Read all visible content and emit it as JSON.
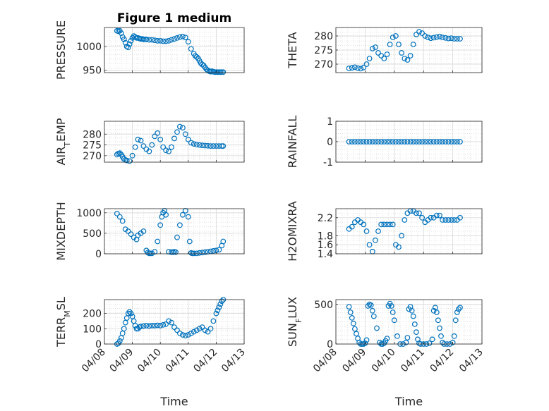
{
  "chart_data": [
    {
      "type": "scatter",
      "title": "Figure 1 medium",
      "ylabel": "PRESSURE",
      "xlabel": "",
      "xlim": [
        0,
        5
      ],
      "ylim": [
        945,
        1040
      ],
      "yticks": [
        950,
        1000
      ],
      "ytick_labels": [
        "950",
        "1000"
      ],
      "xtick_labels": [],
      "series": [
        {
          "name": "PRESSURE",
          "x": [
            0.45,
            0.5,
            0.55,
            0.6,
            0.65,
            0.7,
            0.75,
            0.8,
            0.85,
            0.9,
            0.95,
            1.0,
            1.05,
            1.1,
            1.15,
            1.2,
            1.25,
            1.3,
            1.35,
            1.4,
            1.45,
            1.5,
            1.6,
            1.7,
            1.8,
            1.9,
            2.0,
            2.1,
            2.2,
            2.3,
            2.4,
            2.5,
            2.6,
            2.7,
            2.8,
            2.9,
            3.0,
            3.1,
            3.2,
            3.25,
            3.3,
            3.35,
            3.4,
            3.45,
            3.5,
            3.55,
            3.6,
            3.65,
            3.7,
            3.75,
            3.8,
            3.85,
            3.9,
            3.95,
            4.0,
            4.05,
            4.1,
            4.15,
            4.2,
            4.25
          ],
          "y": [
            1033,
            1032,
            1033,
            1028,
            1020,
            1015,
            1008,
            1000,
            998,
            1005,
            1012,
            1018,
            1022,
            1020,
            1018,
            1018,
            1017,
            1016,
            1016,
            1015,
            1015,
            1015,
            1014,
            1014,
            1013,
            1012,
            1012,
            1011,
            1011,
            1012,
            1014,
            1016,
            1018,
            1020,
            1021,
            1019,
            1010,
            995,
            985,
            980,
            978,
            975,
            970,
            965,
            962,
            960,
            956,
            952,
            950,
            948,
            947,
            948,
            947,
            946,
            946,
            946,
            946,
            946,
            946,
            946
          ]
        }
      ]
    },
    {
      "type": "scatter",
      "title": "",
      "ylabel": "THETA",
      "xlabel": "",
      "xlim": [
        0,
        5
      ],
      "ylim": [
        267,
        283
      ],
      "yticks": [
        270,
        275,
        280
      ],
      "ytick_labels": [
        "270",
        "275",
        "280"
      ],
      "xtick_labels": [],
      "series": [
        {
          "name": "THETA",
          "x": [
            0.45,
            0.55,
            0.65,
            0.75,
            0.85,
            0.95,
            1.05,
            1.15,
            1.25,
            1.35,
            1.45,
            1.55,
            1.65,
            1.75,
            1.85,
            1.95,
            2.05,
            2.15,
            2.25,
            2.35,
            2.45,
            2.55,
            2.65,
            2.75,
            2.85,
            2.95,
            3.05,
            3.15,
            3.25,
            3.35,
            3.45,
            3.55,
            3.65,
            3.75,
            3.85,
            3.95,
            4.05,
            4.15,
            4.25
          ],
          "y": [
            268.5,
            268.7,
            268.9,
            268.6,
            268.4,
            268.8,
            270,
            272,
            275.5,
            276,
            274,
            273,
            272,
            273.5,
            277,
            279.5,
            280,
            277,
            274,
            272,
            271.5,
            273,
            277,
            280.5,
            281.5,
            281,
            280,
            279.5,
            279.2,
            279.4,
            279.6,
            279.8,
            279.5,
            279.3,
            279.1,
            279.2,
            279.0,
            279.0,
            279.0
          ]
        }
      ]
    },
    {
      "type": "scatter",
      "title": "",
      "ylabel": "AIR_TEMP",
      "xlabel": "",
      "xlim": [
        0,
        5
      ],
      "ylim": [
        267,
        286
      ],
      "yticks": [
        270,
        275,
        280
      ],
      "ytick_labels": [
        "270",
        "275",
        "280"
      ],
      "xtick_labels": [],
      "series": [
        {
          "name": "AIR_TEMP",
          "x": [
            0.45,
            0.5,
            0.55,
            0.6,
            0.65,
            0.7,
            0.75,
            0.8,
            0.9,
            1.0,
            1.1,
            1.2,
            1.3,
            1.4,
            1.5,
            1.6,
            1.7,
            1.8,
            1.9,
            2.0,
            2.1,
            2.2,
            2.3,
            2.4,
            2.5,
            2.6,
            2.7,
            2.8,
            2.9,
            3.0,
            3.1,
            3.2,
            3.3,
            3.4,
            3.5,
            3.6,
            3.7,
            3.8,
            3.9,
            4.0,
            4.1,
            4.2,
            4.25
          ],
          "y": [
            270.5,
            271,
            271.2,
            270.5,
            269.5,
            268.5,
            268,
            267.8,
            267.5,
            270,
            274,
            277.5,
            277,
            274.5,
            273,
            272,
            275,
            279,
            280.5,
            277.5,
            274,
            272.5,
            272,
            274,
            278,
            281,
            283.5,
            283,
            280,
            277.5,
            276,
            275.5,
            275.2,
            275.0,
            274.8,
            274.7,
            274.6,
            274.5,
            274.5,
            274.5,
            274.5,
            274.5,
            274.5
          ]
        }
      ]
    },
    {
      "type": "scatter",
      "title": "",
      "ylabel": "RAINFALL",
      "xlabel": "",
      "xlim": [
        0,
        5
      ],
      "ylim": [
        -1,
        1
      ],
      "yticks": [
        -1,
        0,
        1
      ],
      "ytick_labels": [
        "-1",
        "0",
        "1"
      ],
      "xtick_labels": [],
      "series": [
        {
          "name": "RAINFALL",
          "x": [
            0.45,
            0.55,
            0.65,
            0.75,
            0.85,
            0.95,
            1.05,
            1.15,
            1.25,
            1.35,
            1.45,
            1.55,
            1.65,
            1.75,
            1.85,
            1.95,
            2.05,
            2.15,
            2.25,
            2.35,
            2.45,
            2.55,
            2.65,
            2.75,
            2.85,
            2.95,
            3.05,
            3.15,
            3.25,
            3.35,
            3.45,
            3.55,
            3.65,
            3.75,
            3.85,
            3.95,
            4.05,
            4.15,
            4.25
          ],
          "y": [
            0,
            0,
            0,
            0,
            0,
            0,
            0,
            0,
            0,
            0,
            0,
            0,
            0,
            0,
            0,
            0,
            0,
            0,
            0,
            0,
            0,
            0,
            0,
            0,
            0,
            0,
            0,
            0,
            0,
            0,
            0,
            0,
            0,
            0,
            0,
            0,
            0,
            0,
            0
          ]
        }
      ]
    },
    {
      "type": "scatter",
      "title": "",
      "ylabel": "MIXDEPTH",
      "xlabel": "",
      "xlim": [
        0,
        5
      ],
      "ylim": [
        0,
        1100
      ],
      "yticks": [
        0,
        500,
        1000
      ],
      "ytick_labels": [
        "0",
        "500",
        "1000"
      ],
      "xtick_labels": [],
      "series": [
        {
          "name": "MIXDEPTH",
          "x": [
            0.45,
            0.55,
            0.65,
            0.75,
            0.85,
            0.95,
            1.05,
            1.15,
            1.2,
            1.3,
            1.4,
            1.5,
            1.55,
            1.6,
            1.65,
            1.7,
            1.8,
            1.9,
            2.0,
            2.05,
            2.1,
            2.15,
            2.2,
            2.3,
            2.4,
            2.45,
            2.5,
            2.55,
            2.6,
            2.7,
            2.8,
            2.9,
            3.0,
            3.05,
            3.1,
            3.15,
            3.2,
            3.3,
            3.4,
            3.5,
            3.6,
            3.7,
            3.8,
            3.9,
            4.0,
            4.1,
            4.2,
            4.25
          ],
          "y": [
            980,
            900,
            800,
            600,
            550,
            480,
            400,
            350,
            450,
            500,
            550,
            80,
            30,
            10,
            10,
            10,
            50,
            300,
            700,
            900,
            1000,
            1050,
            950,
            50,
            40,
            40,
            50,
            40,
            400,
            700,
            950,
            1050,
            900,
            300,
            20,
            10,
            10,
            10,
            20,
            30,
            40,
            50,
            60,
            70,
            80,
            100,
            200,
            300
          ]
        }
      ]
    },
    {
      "type": "scatter",
      "title": "",
      "ylabel": "H2OMIXRA",
      "xlabel": "",
      "xlim": [
        0,
        5
      ],
      "ylim": [
        1.4,
        2.4
      ],
      "yticks": [
        1.4,
        1.6,
        1.8,
        2.2
      ],
      "ytick_labels": [
        "1.4",
        "1.6",
        "1.8",
        "2.2"
      ],
      "xtick_labels": [],
      "series": [
        {
          "name": "H2OMIXRA",
          "x": [
            0.45,
            0.55,
            0.65,
            0.75,
            0.85,
            0.95,
            1.05,
            1.15,
            1.25,
            1.35,
            1.45,
            1.55,
            1.65,
            1.75,
            1.85,
            1.95,
            2.05,
            2.15,
            2.25,
            2.35,
            2.45,
            2.55,
            2.65,
            2.75,
            2.85,
            2.95,
            3.05,
            3.15,
            3.25,
            3.35,
            3.45,
            3.55,
            3.65,
            3.75,
            3.85,
            3.95,
            4.05,
            4.15,
            4.25
          ],
          "y": [
            1.95,
            2.0,
            2.1,
            2.15,
            2.1,
            2.05,
            1.9,
            1.6,
            1.45,
            1.7,
            1.9,
            2.05,
            2.05,
            2.05,
            2.05,
            2.05,
            1.6,
            1.55,
            1.8,
            2.15,
            2.3,
            2.35,
            2.35,
            2.3,
            2.3,
            2.2,
            2.1,
            2.15,
            2.2,
            2.2,
            2.25,
            2.25,
            2.15,
            2.15,
            2.15,
            2.15,
            2.15,
            2.15,
            2.2
          ]
        }
      ]
    },
    {
      "type": "scatter",
      "title": "",
      "ylabel": "TERR_MSL",
      "xlabel": "Time",
      "xlim": [
        0,
        5
      ],
      "ylim": [
        0,
        290
      ],
      "yticks": [
        0,
        100,
        200
      ],
      "ytick_labels": [
        "0",
        "100",
        "200"
      ],
      "xtick_labels": [
        "04/08",
        "04/09",
        "04/10",
        "04/11",
        "04/12",
        "04/13"
      ],
      "series": [
        {
          "name": "TERR_MSL",
          "x": [
            0.45,
            0.5,
            0.55,
            0.6,
            0.65,
            0.7,
            0.75,
            0.8,
            0.85,
            0.9,
            0.95,
            1.0,
            1.05,
            1.1,
            1.15,
            1.2,
            1.25,
            1.3,
            1.4,
            1.5,
            1.6,
            1.7,
            1.8,
            1.9,
            2.0,
            2.1,
            2.2,
            2.3,
            2.4,
            2.5,
            2.6,
            2.7,
            2.8,
            2.9,
            3.0,
            3.1,
            3.2,
            3.3,
            3.4,
            3.5,
            3.6,
            3.7,
            3.8,
            3.9,
            4.0,
            4.05,
            4.1,
            4.15,
            4.2,
            4.25
          ],
          "y": [
            0,
            5,
            20,
            40,
            70,
            100,
            140,
            170,
            200,
            210,
            200,
            180,
            150,
            120,
            100,
            100,
            110,
            115,
            118,
            120,
            118,
            120,
            120,
            122,
            120,
            125,
            130,
            150,
            140,
            110,
            90,
            70,
            60,
            55,
            60,
            70,
            80,
            90,
            100,
            110,
            90,
            80,
            100,
            150,
            200,
            220,
            240,
            260,
            280,
            290
          ]
        }
      ]
    },
    {
      "type": "scatter",
      "title": "",
      "ylabel": "SUN_FLUX",
      "xlabel": "Time",
      "xlim": [
        0,
        5
      ],
      "ylim": [
        0,
        560
      ],
      "yticks": [
        0,
        500
      ],
      "ytick_labels": [
        "0",
        "500"
      ],
      "xtick_labels": [
        "04/08",
        "04/09",
        "04/10",
        "04/11",
        "04/12",
        "04/13"
      ],
      "series": [
        {
          "name": "SUN_FLUX",
          "x": [
            0.45,
            0.5,
            0.55,
            0.6,
            0.65,
            0.7,
            0.75,
            0.8,
            0.85,
            0.9,
            0.95,
            1.0,
            1.05,
            1.1,
            1.15,
            1.2,
            1.25,
            1.3,
            1.4,
            1.5,
            1.55,
            1.6,
            1.65,
            1.7,
            1.75,
            1.8,
            1.85,
            1.9,
            1.95,
            2.0,
            2.1,
            2.2,
            2.3,
            2.4,
            2.45,
            2.5,
            2.55,
            2.6,
            2.65,
            2.7,
            2.75,
            2.8,
            2.85,
            2.9,
            3.0,
            3.1,
            3.2,
            3.3,
            3.35,
            3.4,
            3.45,
            3.5,
            3.55,
            3.6,
            3.65,
            3.7,
            3.8,
            3.9,
            4.0,
            4.05,
            4.1,
            4.15,
            4.2,
            4.25
          ],
          "y": [
            470,
            400,
            330,
            260,
            190,
            130,
            70,
            20,
            0,
            0,
            0,
            10,
            50,
            480,
            500,
            490,
            420,
            350,
            200,
            20,
            0,
            0,
            10,
            40,
            70,
            480,
            510,
            480,
            400,
            300,
            100,
            0,
            0,
            20,
            80,
            440,
            470,
            420,
            350,
            250,
            150,
            60,
            10,
            0,
            0,
            0,
            10,
            60,
            420,
            460,
            400,
            300,
            200,
            100,
            20,
            0,
            0,
            0,
            20,
            100,
            300,
            400,
            440,
            460
          ]
        }
      ]
    }
  ]
}
